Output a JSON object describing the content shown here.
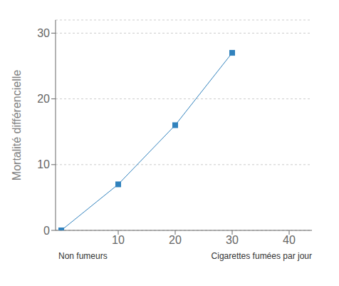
{
  "chart_data": {
    "type": "line",
    "x": [
      0,
      10,
      20,
      30
    ],
    "values": [
      0,
      7,
      16,
      27
    ],
    "xlim": [
      -1,
      44
    ],
    "xticks": [
      10,
      20,
      30,
      40
    ],
    "ylim": [
      0,
      32
    ],
    "yticks": [
      0,
      10,
      20,
      30
    ],
    "xlabel": "Cigarettes fumées par jour",
    "ylabel": "Mortalité différencielle",
    "annotations": [
      "Non fumeurs"
    ],
    "grid": "y",
    "marker": "square"
  }
}
